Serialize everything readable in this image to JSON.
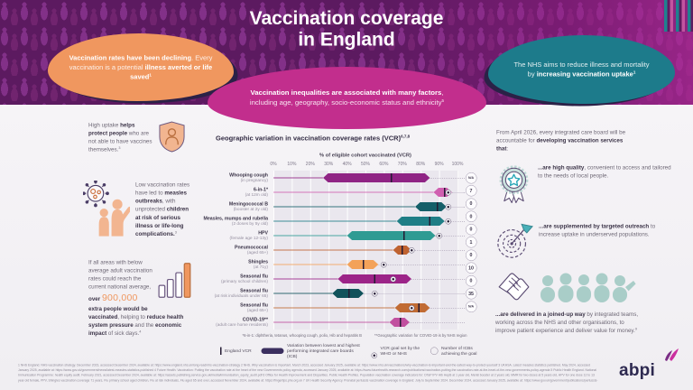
{
  "header": {
    "title_line1": "Vaccination coverage",
    "title_line2": "in England"
  },
  "bubbles": {
    "left": {
      "segments": [
        {
          "t": "Vaccination rates have been declining",
          "b": true
        },
        {
          "t": ". Every vaccination is a potential "
        },
        {
          "t": "illness averted or life saved",
          "b": true
        },
        {
          "t": "1",
          "b": true,
          "sup": true
        }
      ]
    },
    "middle": {
      "segments": [
        {
          "t": "Vaccination inequalities are associated with many factors",
          "b": true
        },
        {
          "t": ", including age, geography, socio-economic status and ethnicity"
        },
        {
          "t": "5",
          "sup": true
        }
      ]
    },
    "right": {
      "segments": [
        {
          "t": "The NHS aims to reduce illness and mortality by "
        },
        {
          "t": "increasing vaccination uptake",
          "b": true
        },
        {
          "t": "1",
          "b": true,
          "sup": true
        }
      ]
    }
  },
  "left_column": {
    "items": [
      {
        "icon": "shield-person-icon",
        "segments": [
          {
            "t": "High uptake "
          },
          {
            "t": "helps protect people",
            "b": true
          },
          {
            "t": " who are not able to have vaccines themselves."
          },
          {
            "t": "3",
            "sup": true
          }
        ]
      },
      {
        "icon": "virus-children-icon",
        "segments": [
          {
            "t": "Low vaccination rates have led to "
          },
          {
            "t": "measles outbreaks",
            "b": true
          },
          {
            "t": ", with unprotected "
          },
          {
            "t": "children at risk of serious illness or life-long complications.",
            "b": true
          },
          {
            "t": "3",
            "sup": true
          }
        ]
      },
      {
        "icon": "rising-bars-icon",
        "segments": [
          {
            "t": "If all areas with below average adult vaccination rates could reach the current national average, "
          },
          {
            "t": "over ",
            "b": true
          },
          {
            "t": "900,000",
            "cls": "big-num"
          },
          {
            "t": " extra people would be vaccinated",
            "b": true
          },
          {
            "t": ", helping to "
          },
          {
            "t": "reduce health system pressure",
            "b": true
          },
          {
            "t": " and the "
          },
          {
            "t": "economic impact",
            "b": true
          },
          {
            "t": " of sick days."
          },
          {
            "t": "4",
            "sup": true
          }
        ]
      }
    ]
  },
  "chart": {
    "title": "Geographic variation in vaccination coverage rates (VCR)",
    "title_sup": "6,7,8",
    "axis_label": "% of eligible cohort vaccinated (VCR)",
    "ticks": [
      "0%",
      "10%",
      "20%",
      "30%",
      "40%",
      "50%",
      "60%",
      "70%",
      "80%",
      "90%",
      "100%"
    ],
    "rows": [
      {
        "name": "Whooping cough",
        "sub": "(in pregnancy)",
        "low": 27,
        "high": 85,
        "england": 64,
        "goal": null,
        "icbs": "N/A",
        "color": "#8f2384"
      },
      {
        "name": "6-in-1*",
        "sub": "(at 12m old)",
        "low": 87,
        "high": 97,
        "england": 93,
        "goal": 95,
        "icbs": "7",
        "color": "#d05fb0"
      },
      {
        "name": "Meningococcal B",
        "sub": "(booster at 2y old)",
        "low": 77,
        "high": 94,
        "england": 89,
        "goal": 95,
        "icbs": "0",
        "color": "#155f69"
      },
      {
        "name": "Measles, mumps and rubella",
        "sub": "(2 doses by 5y old)",
        "low": 67,
        "high": 93,
        "england": 85,
        "goal": 95,
        "icbs": "0",
        "color": "#1f7e86"
      },
      {
        "name": "HPV",
        "sub": "(female age 12-13y)",
        "low": 40,
        "high": 88,
        "england": 71,
        "goal": 90,
        "icbs": "0",
        "color": "#2f9b93"
      },
      {
        "name": "Pneumococcal",
        "sub": "(aged 65+)",
        "low": 65,
        "high": 75,
        "england": 70,
        "goal": 75,
        "icbs": "1",
        "color": "#bf6230"
      },
      {
        "name": "Shingles",
        "sub": "(at 71y)",
        "low": 40,
        "high": 57,
        "england": 49,
        "goal": 60,
        "icbs": "0",
        "color": "#f3a259"
      },
      {
        "name": "Seasonal flu",
        "sub": "(primary school children)",
        "low": 35,
        "high": 75,
        "england": 55,
        "goal": 65,
        "icbs": "10",
        "color": "#9c2488"
      },
      {
        "name": "Seasonal flu",
        "sub": "(at risk individuals under 65)",
        "low": 32,
        "high": 49,
        "england": 41,
        "goal": 55,
        "icbs": "0",
        "color": "#11525b"
      },
      {
        "name": "Seasonal flu",
        "sub": "(aged 65+)",
        "low": 66,
        "high": 85,
        "england": 79,
        "goal": 75,
        "icbs": "35",
        "color": "#c16b33"
      },
      {
        "name": "COVID-19**",
        "sub": "(adult care home residents)",
        "low": 63,
        "high": 74,
        "england": 69,
        "goal": null,
        "icbs": "N/A",
        "color": "#c14f9f"
      }
    ],
    "footnotes": {
      "left": "*6-in-1: diphtheria, tetanus, whooping cough, polio, Hib and hepatitis B",
      "right": "**Geographic variation for COVID-19 is by NHS region"
    },
    "legend": {
      "england": "England VCR",
      "variation": "Variation between lowest and highest performing integrated care boards (ICB)",
      "goal": "VCR goal set by the WHO or NHS",
      "icbs": "Number of ICBs achieving the goal"
    }
  },
  "right_column": {
    "intro_segments": [
      {
        "t": "From April 2026, every integrated care board will be accountable for "
      },
      {
        "t": "developing vaccination services that",
        "b": true
      },
      {
        "t": ":"
      }
    ],
    "items": [
      {
        "icon": "rosette-icon",
        "segments": [
          {
            "t": "...are high quality",
            "b": true
          },
          {
            "t": ", convenient to access and tailored to the needs of local people."
          }
        ]
      },
      {
        "icon": "target-outreach-icon",
        "segments": [
          {
            "t": "...are supplemented by targeted outreach",
            "b": true
          },
          {
            "t": " to increase uptake in underserved populations."
          }
        ]
      },
      {
        "icon": "joined-hands-icon",
        "segments": [
          {
            "t": "...are delivered in a joined-up way",
            "b": true
          },
          {
            "t": " by integrated teams, working across the NHS and other organisations, to improve patient experience and deliver value for money."
          },
          {
            "t": "9",
            "sup": true
          }
        ]
      }
    ]
  },
  "footer": {
    "references": "1 NHS England. NHS vaccination strategy. December 2023, accessed December 2024, available at: https://www.england.nhs.uk/long-read/nhs-vaccination-strategy   2 NHS. Why vaccination is important. March 2023, accessed January 2025, available at: https://www.nhs.uk/vaccinations/why-vaccination-is-important-and-the-safest-way-to-protect-yourself   3 UKHSA. Latest measles statistics published. May 2024, accessed January 2025, available at: https://www.gov.uk/government/news/latest-measles-statistics-published   4 Future Health. Vaccination: Putting the vaccination rate at the heart of the new Governments policy agenda, accessed January 2025, available at: https://www.futurehealth-research.com/publications/vaccination-putting-the-vaccination-rate-at-the-heart-of-the-new-governments-policy-agenda   5 Public Health England. National Immunisation Programme: health equity audit. February 2021, accessed December 2024, available at: https://assets.publishing.service.gov.uk/media/immunisation_equity_audit.pdf   6 Office for Health Improvement and Disparities. Public Health Profiles. Population vaccination coverage indicators for: DTaP IPV Hib HepB at 1 year old, MenB booster at 2 years old, MMR for two doses at 5 years old, HPV for one dose 12 to 13 year old female, PPV, Shingles vaccination coverage 71 years, Flu primary school aged children, Flu at risk individuals, Flu aged 65 and over, accessed November 2024, available at: https://fingertips.phe.org.uk   7 UK Health Security Agency. Prenatal pertussis vaccination coverage in England: July to September 2024. December 2024, accessed January 2025, available at: https://www.gov.uk/government/publications/pertussis-immunisation-in-pregnancy-vaccine-coverage-estimates-in-england-october-2023-to-march-2024   8 UK Health Security Agency. Seasonal flu vaccine uptake in older and care home residents to 30 June 2024, accessed January 2025   9 NHS England. Spring vaccinations to date: adult care home residents to 30 June 2024, accessed January 2025, available at: https://www.england.nhs.uk/statistics/statistical-work-areas/covid-19-vaccinations",
    "logo_text": "abpi"
  },
  "chart_data": {
    "type": "bar",
    "variant": "horizontal-range",
    "title": "Geographic variation in vaccination coverage rates (VCR)",
    "xlabel": "% of eligible cohort vaccinated (VCR)",
    "xlim": [
      0,
      100
    ],
    "x_ticks_percent": [
      0,
      10,
      20,
      30,
      40,
      50,
      60,
      70,
      80,
      90,
      100
    ],
    "grid": true,
    "legend_position": "bottom",
    "categories": [
      "Whooping cough (in pregnancy)",
      "6-in-1 (at 12m old)",
      "Meningococcal B (booster at 2y old)",
      "Measles, mumps and rubella (2 doses by 5y old)",
      "HPV (female age 12-13y)",
      "Pneumococcal (aged 65+)",
      "Shingles (at 71y)",
      "Seasonal flu (primary school children)",
      "Seasonal flu (at risk individuals under 65)",
      "Seasonal flu (aged 65+)",
      "COVID-19 (adult care home residents)"
    ],
    "series": [
      {
        "name": "Lowest performing ICB (%)",
        "values": [
          27,
          87,
          77,
          67,
          40,
          65,
          40,
          35,
          32,
          66,
          63
        ]
      },
      {
        "name": "Highest performing ICB (%)",
        "values": [
          85,
          97,
          94,
          93,
          88,
          75,
          57,
          75,
          49,
          85,
          74
        ]
      },
      {
        "name": "England VCR (%)",
        "values": [
          64,
          93,
          89,
          85,
          71,
          70,
          49,
          55,
          41,
          79,
          69
        ]
      },
      {
        "name": "VCR goal set by the WHO or NHS (%)",
        "values": [
          null,
          95,
          95,
          95,
          90,
          75,
          60,
          65,
          55,
          75,
          null
        ]
      },
      {
        "name": "Number of ICBs achieving the goal",
        "values": [
          "N/A",
          "7",
          "0",
          "0",
          "0",
          "1",
          "0",
          "10",
          "0",
          "35",
          "N/A"
        ]
      }
    ]
  }
}
